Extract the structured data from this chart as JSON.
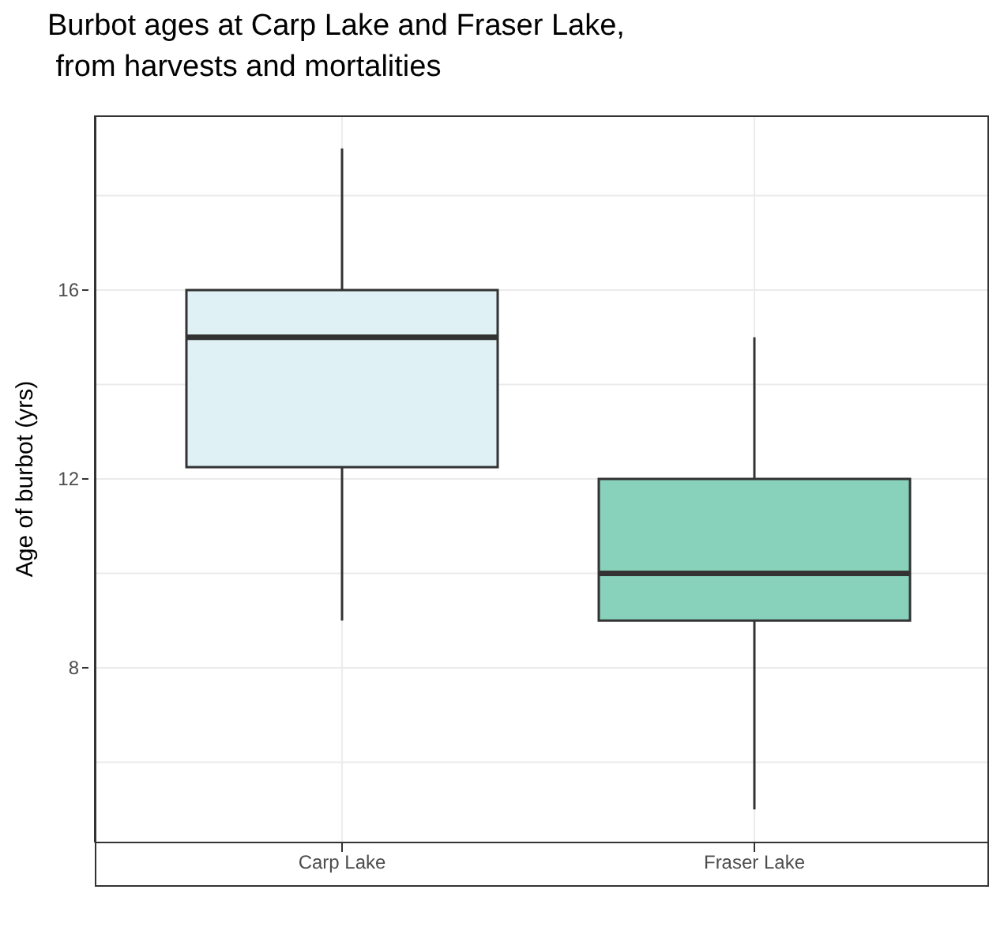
{
  "chart_data": {
    "type": "box",
    "title": "Burbot ages at Carp Lake and Fraser Lake,\n from harvests and mortalities",
    "ylabel": "Age of burbot (yrs)",
    "categories": [
      "Carp Lake",
      "Fraser Lake"
    ],
    "boxes": [
      {
        "low": 9,
        "q1": 12.25,
        "median": 15,
        "q3": 16,
        "high": 19
      },
      {
        "low": 5,
        "q1": 9,
        "median": 10,
        "q3": 12,
        "high": 15
      }
    ],
    "colors": [
      "#dff1f5",
      "#88d1bb"
    ],
    "ylim": [
      4.3,
      19.7
    ],
    "yticks": [
      {
        "value": 6,
        "label": null
      },
      8,
      {
        "value": 10,
        "label": null
      },
      12,
      {
        "value": 14,
        "label": null
      },
      16,
      {
        "value": 18,
        "label": null
      }
    ],
    "grid": true
  }
}
